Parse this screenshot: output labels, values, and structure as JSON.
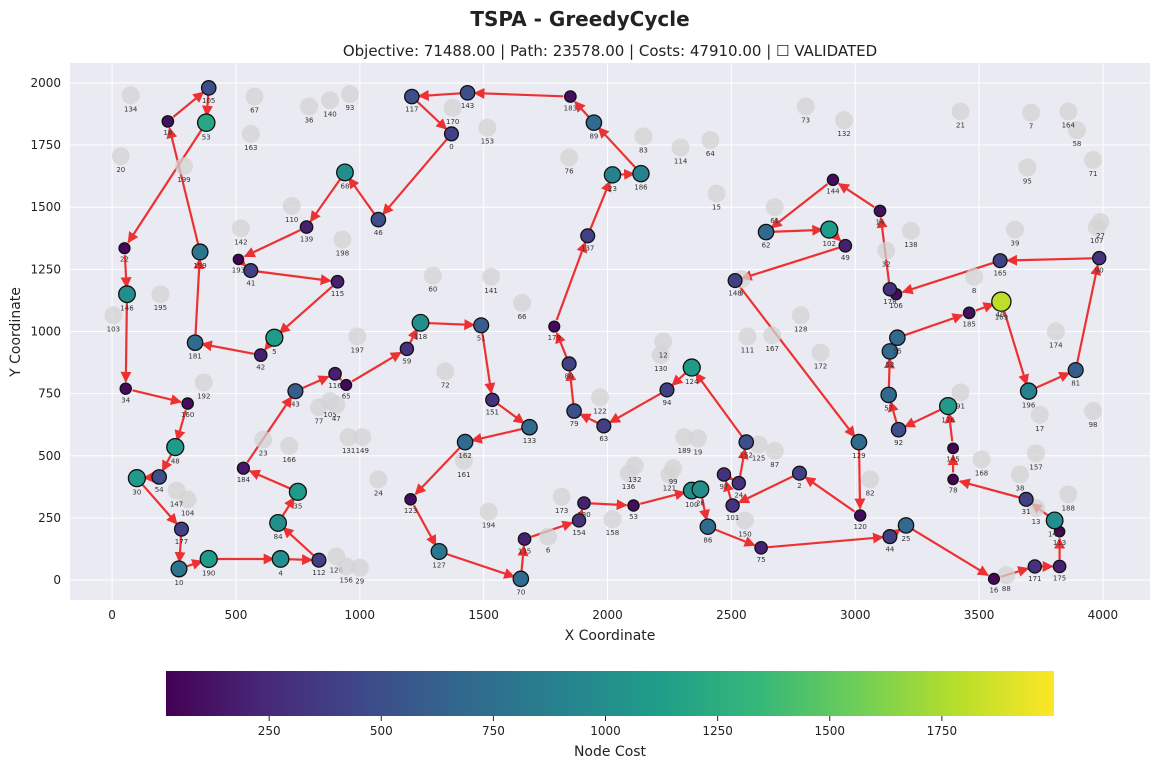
{
  "chart_data": {
    "type": "scatter",
    "title": "TSPA - GreedyCycle",
    "subtitle": "Objective: 71488.00 | Path: 23578.00 | Costs: 47910.00 | ☐ VALIDATED",
    "xlabel": "X Coordinate",
    "ylabel": "Y Coordinate",
    "xlim": [
      -170,
      4190
    ],
    "ylim": [
      -80,
      2080
    ],
    "xticks": [
      0,
      500,
      1000,
      1500,
      2000,
      2500,
      3000,
      3500,
      4000
    ],
    "yticks": [
      0,
      250,
      500,
      750,
      1000,
      1250,
      1500,
      1750,
      2000
    ],
    "grid": true,
    "colorbar": {
      "label": "Node Cost",
      "range": [
        20,
        2000
      ],
      "ticks": [
        250,
        500,
        750,
        1000,
        1250,
        1500,
        1750
      ],
      "colormap": [
        "#440154",
        "#482878",
        "#3e4989",
        "#31688e",
        "#26828e",
        "#1f9e89",
        "#35b779",
        "#6ece58",
        "#b5de2b",
        "#fde725"
      ]
    },
    "edge_color": "#ee1111",
    "unselected_color": "#d3d3d3",
    "selected_nodes": [
      {
        "id": 18,
        "x": 225,
        "y": 1845,
        "cost": 100
      },
      {
        "id": 105,
        "x": 390,
        "y": 1980,
        "cost": 500
      },
      {
        "id": 53,
        "x": 380,
        "y": 1840,
        "cost": 1200
      },
      {
        "id": 22,
        "x": 50,
        "y": 1335,
        "cost": 60
      },
      {
        "id": 146,
        "x": 60,
        "y": 1150,
        "cost": 1000
      },
      {
        "id": 34,
        "x": 55,
        "y": 770,
        "cost": 80
      },
      {
        "id": 160,
        "x": 305,
        "y": 710,
        "cost": 90
      },
      {
        "id": 48,
        "x": 255,
        "y": 535,
        "cost": 1100
      },
      {
        "id": 54,
        "x": 190,
        "y": 415,
        "cost": 500
      },
      {
        "id": 30,
        "x": 100,
        "y": 410,
        "cost": 1100
      },
      {
        "id": 177,
        "x": 280,
        "y": 205,
        "cost": 400
      },
      {
        "id": 10,
        "x": 270,
        "y": 45,
        "cost": 800
      },
      {
        "id": 190,
        "x": 390,
        "y": 85,
        "cost": 1100
      },
      {
        "id": 4,
        "x": 680,
        "y": 85,
        "cost": 1000
      },
      {
        "id": 112,
        "x": 835,
        "y": 80,
        "cost": 400
      },
      {
        "id": 84,
        "x": 670,
        "y": 230,
        "cost": 1000
      },
      {
        "id": 35,
        "x": 750,
        "y": 355,
        "cost": 1100
      },
      {
        "id": 184,
        "x": 530,
        "y": 450,
        "cost": 150
      },
      {
        "id": 43,
        "x": 740,
        "y": 760,
        "cost": 600
      },
      {
        "id": 116,
        "x": 900,
        "y": 830,
        "cost": 200
      },
      {
        "id": 65,
        "x": 945,
        "y": 785,
        "cost": 60
      },
      {
        "id": 59,
        "x": 1190,
        "y": 930,
        "cost": 300
      },
      {
        "id": 118,
        "x": 1245,
        "y": 1035,
        "cost": 1000
      },
      {
        "id": 51,
        "x": 1490,
        "y": 1025,
        "cost": 600
      },
      {
        "id": 151,
        "x": 1535,
        "y": 725,
        "cost": 300
      },
      {
        "id": 133,
        "x": 1685,
        "y": 615,
        "cost": 700
      },
      {
        "id": 162,
        "x": 1425,
        "y": 555,
        "cost": 700
      },
      {
        "id": 123,
        "x": 1205,
        "y": 325,
        "cost": 90
      },
      {
        "id": 127,
        "x": 1320,
        "y": 115,
        "cost": 800
      },
      {
        "id": 70,
        "x": 1650,
        "y": 5,
        "cost": 700
      },
      {
        "id": 135,
        "x": 1665,
        "y": 165,
        "cost": 200
      },
      {
        "id": 154,
        "x": 1885,
        "y": 240,
        "cost": 300
      },
      {
        "id": 180,
        "x": 1905,
        "y": 310,
        "cost": 200
      },
      {
        "id": 53,
        "x": 2105,
        "y": 300,
        "cost": 80
      },
      {
        "id": 100,
        "x": 2340,
        "y": 360,
        "cost": 1000
      },
      {
        "id": 26,
        "x": 2375,
        "y": 365,
        "cost": 1000
      },
      {
        "id": 86,
        "x": 2405,
        "y": 215,
        "cost": 700
      },
      {
        "id": 75,
        "x": 2620,
        "y": 130,
        "cost": 200
      },
      {
        "id": 44,
        "x": 3140,
        "y": 175,
        "cost": 400
      },
      {
        "id": 25,
        "x": 3205,
        "y": 220,
        "cost": 700
      },
      {
        "id": 16,
        "x": 3560,
        "y": 5,
        "cost": 60
      },
      {
        "id": 171,
        "x": 3725,
        "y": 55,
        "cost": 300
      },
      {
        "id": 175,
        "x": 3825,
        "y": 55,
        "cost": 200
      },
      {
        "id": 113,
        "x": 3825,
        "y": 195,
        "cost": 30
      },
      {
        "id": 140,
        "x": 3805,
        "y": 240,
        "cost": 1000
      },
      {
        "id": 31,
        "x": 3690,
        "y": 325,
        "cost": 400
      },
      {
        "id": 78,
        "x": 3395,
        "y": 405,
        "cost": 30
      },
      {
        "id": 145,
        "x": 3395,
        "y": 530,
        "cost": 40
      },
      {
        "id": 176,
        "x": 3375,
        "y": 700,
        "cost": 1100
      },
      {
        "id": 92,
        "x": 3175,
        "y": 605,
        "cost": 500
      },
      {
        "id": 57,
        "x": 3135,
        "y": 745,
        "cost": 700
      },
      {
        "id": 52,
        "x": 3140,
        "y": 920,
        "cost": 700
      },
      {
        "id": 55,
        "x": 3170,
        "y": 975,
        "cost": 700
      },
      {
        "id": 185,
        "x": 3460,
        "y": 1075,
        "cost": 100
      },
      {
        "id": 40,
        "x": 3585,
        "y": 1120,
        "cost": 600
      },
      {
        "id": 169,
        "x": 3590,
        "y": 1120,
        "cost": 1800
      },
      {
        "id": 196,
        "x": 3700,
        "y": 760,
        "cost": 900
      },
      {
        "id": 81,
        "x": 3890,
        "y": 845,
        "cost": 600
      },
      {
        "id": 90,
        "x": 3985,
        "y": 1295,
        "cost": 300
      },
      {
        "id": 165,
        "x": 3585,
        "y": 1285,
        "cost": 400
      },
      {
        "id": 106,
        "x": 3165,
        "y": 1150,
        "cost": 80
      },
      {
        "id": 178,
        "x": 3140,
        "y": 1170,
        "cost": 300
      },
      {
        "id": 14,
        "x": 3100,
        "y": 1485,
        "cost": 100
      },
      {
        "id": 144,
        "x": 2910,
        "y": 1610,
        "cost": 80
      },
      {
        "id": 62,
        "x": 2640,
        "y": 1400,
        "cost": 700
      },
      {
        "id": 102,
        "x": 2895,
        "y": 1410,
        "cost": 1100
      },
      {
        "id": 49,
        "x": 2960,
        "y": 1345,
        "cost": 200
      },
      {
        "id": 148,
        "x": 2515,
        "y": 1205,
        "cost": 400
      },
      {
        "id": 129,
        "x": 3015,
        "y": 555,
        "cost": 700
      },
      {
        "id": 120,
        "x": 3020,
        "y": 260,
        "cost": 80
      },
      {
        "id": 2,
        "x": 2775,
        "y": 430,
        "cost": 400
      },
      {
        "id": 101,
        "x": 2505,
        "y": 300,
        "cost": 300
      },
      {
        "id": 97,
        "x": 2470,
        "y": 425,
        "cost": 300
      },
      {
        "id": 24,
        "x": 2530,
        "y": 390,
        "cost": 300
      },
      {
        "id": 152,
        "x": 2560,
        "y": 555,
        "cost": 500
      },
      {
        "id": 124,
        "x": 2340,
        "y": 855,
        "cost": 1100
      },
      {
        "id": 94,
        "x": 2240,
        "y": 765,
        "cost": 400
      },
      {
        "id": 63,
        "x": 1985,
        "y": 620,
        "cost": 400
      },
      {
        "id": 79,
        "x": 1865,
        "y": 680,
        "cost": 500
      },
      {
        "id": 80,
        "x": 1845,
        "y": 870,
        "cost": 400
      },
      {
        "id": 179,
        "x": 1785,
        "y": 1020,
        "cost": 60
      },
      {
        "id": 137,
        "x": 1920,
        "y": 1385,
        "cost": 400
      },
      {
        "id": 23,
        "x": 2020,
        "y": 1630,
        "cost": 900
      },
      {
        "id": 186,
        "x": 2135,
        "y": 1635,
        "cost": 900
      },
      {
        "id": 89,
        "x": 1945,
        "y": 1840,
        "cost": 700
      },
      {
        "id": 183,
        "x": 1850,
        "y": 1945,
        "cost": 100
      },
      {
        "id": 143,
        "x": 1435,
        "y": 1960,
        "cost": 500
      },
      {
        "id": 117,
        "x": 1210,
        "y": 1945,
        "cost": 500
      },
      {
        "id": 0,
        "x": 1370,
        "y": 1795,
        "cost": 400
      },
      {
        "id": 46,
        "x": 1075,
        "y": 1450,
        "cost": 500
      },
      {
        "id": 68,
        "x": 940,
        "y": 1640,
        "cost": 1000
      },
      {
        "id": 139,
        "x": 785,
        "y": 1420,
        "cost": 200
      },
      {
        "id": 193,
        "x": 510,
        "y": 1290,
        "cost": 30
      },
      {
        "id": 41,
        "x": 560,
        "y": 1245,
        "cost": 400
      },
      {
        "id": 115,
        "x": 910,
        "y": 1200,
        "cost": 200
      },
      {
        "id": 5,
        "x": 655,
        "y": 975,
        "cost": 1100
      },
      {
        "id": 42,
        "x": 600,
        "y": 905,
        "cost": 200
      },
      {
        "id": 181,
        "x": 335,
        "y": 955,
        "cost": 700
      },
      {
        "id": 159,
        "x": 355,
        "y": 1320,
        "cost": 800
      }
    ],
    "path_order": [
      18,
      105,
      53,
      159,
      181,
      42,
      5,
      115,
      41,
      193,
      139,
      68,
      46,
      0,
      117,
      143,
      183,
      89,
      186,
      23,
      137,
      179,
      80,
      79,
      63,
      94,
      124,
      152,
      24,
      97,
      101,
      2,
      120,
      129,
      57,
      52,
      55,
      185,
      40,
      169,
      196,
      81,
      90,
      165,
      106,
      178,
      14,
      144,
      62,
      148,
      102,
      49,
      92,
      176,
      145,
      78,
      31,
      140,
      113,
      175,
      171,
      16,
      25,
      44,
      75,
      86,
      100,
      26,
      53,
      180,
      154,
      135,
      70,
      127,
      123,
      162,
      133,
      151,
      51,
      118,
      59,
      65,
      116,
      43,
      184,
      35,
      84,
      112,
      4,
      190,
      10,
      177,
      54,
      30,
      48,
      160,
      34,
      146,
      22
    ],
    "other_nodes": [
      {
        "id": 134,
        "x": 75,
        "y": 1950
      },
      {
        "id": 67,
        "x": 575,
        "y": 1945
      },
      {
        "id": 36,
        "x": 795,
        "y": 1905
      },
      {
        "id": 140,
        "x": 880,
        "y": 1930
      },
      {
        "id": 93,
        "x": 960,
        "y": 1955
      },
      {
        "id": 170,
        "x": 1375,
        "y": 1900
      },
      {
        "id": 153,
        "x": 1515,
        "y": 1820
      },
      {
        "id": 163,
        "x": 560,
        "y": 1795
      },
      {
        "id": 20,
        "x": 35,
        "y": 1705
      },
      {
        "id": 199,
        "x": 290,
        "y": 1665
      },
      {
        "id": 110,
        "x": 725,
        "y": 1505
      },
      {
        "id": 142,
        "x": 520,
        "y": 1415
      },
      {
        "id": 198,
        "x": 930,
        "y": 1370
      },
      {
        "id": 60,
        "x": 1295,
        "y": 1225
      },
      {
        "id": 141,
        "x": 1530,
        "y": 1220
      },
      {
        "id": 66,
        "x": 1655,
        "y": 1115
      },
      {
        "id": 195,
        "x": 195,
        "y": 1150
      },
      {
        "id": 103,
        "x": 5,
        "y": 1065
      },
      {
        "id": 197,
        "x": 990,
        "y": 980
      },
      {
        "id": 192,
        "x": 370,
        "y": 795
      },
      {
        "id": 72,
        "x": 1345,
        "y": 840
      },
      {
        "id": 77,
        "x": 835,
        "y": 695
      },
      {
        "id": 105,
        "x": 880,
        "y": 720
      },
      {
        "id": 47,
        "x": 905,
        "y": 705
      },
      {
        "id": 23,
        "x": 610,
        "y": 565
      },
      {
        "id": 166,
        "x": 715,
        "y": 540
      },
      {
        "id": 131,
        "x": 955,
        "y": 575
      },
      {
        "id": 149,
        "x": 1010,
        "y": 575
      },
      {
        "id": 104,
        "x": 305,
        "y": 325
      },
      {
        "id": 147,
        "x": 260,
        "y": 360
      },
      {
        "id": 24,
        "x": 1075,
        "y": 405
      },
      {
        "id": 161,
        "x": 1420,
        "y": 480
      },
      {
        "id": 194,
        "x": 1520,
        "y": 275
      },
      {
        "id": 173,
        "x": 1815,
        "y": 335
      },
      {
        "id": 6,
        "x": 1760,
        "y": 175
      },
      {
        "id": 126,
        "x": 905,
        "y": 95
      },
      {
        "id": 156,
        "x": 945,
        "y": 55
      },
      {
        "id": 29,
        "x": 1000,
        "y": 50
      },
      {
        "id": 158,
        "x": 2020,
        "y": 245
      },
      {
        "id": 150,
        "x": 2555,
        "y": 240
      },
      {
        "id": 121,
        "x": 2250,
        "y": 425
      },
      {
        "id": 99,
        "x": 2265,
        "y": 450
      },
      {
        "id": 136,
        "x": 2085,
        "y": 430
      },
      {
        "id": 132,
        "x": 2110,
        "y": 460
      },
      {
        "id": 189,
        "x": 2310,
        "y": 575
      },
      {
        "id": 19,
        "x": 2365,
        "y": 570
      },
      {
        "id": 125,
        "x": 2610,
        "y": 545
      },
      {
        "id": 87,
        "x": 2675,
        "y": 520
      },
      {
        "id": 122,
        "x": 1970,
        "y": 735
      },
      {
        "id": 130,
        "x": 2215,
        "y": 905
      },
      {
        "id": 12,
        "x": 2225,
        "y": 960
      },
      {
        "id": 111,
        "x": 2565,
        "y": 980
      },
      {
        "id": 167,
        "x": 2665,
        "y": 985
      },
      {
        "id": 128,
        "x": 2780,
        "y": 1065
      },
      {
        "id": 172,
        "x": 2860,
        "y": 915
      },
      {
        "id": 82,
        "x": 3060,
        "y": 405
      },
      {
        "id": 168,
        "x": 3510,
        "y": 485
      },
      {
        "id": 157,
        "x": 3730,
        "y": 510
      },
      {
        "id": 38,
        "x": 3665,
        "y": 425
      },
      {
        "id": 188,
        "x": 3860,
        "y": 345
      },
      {
        "id": 13,
        "x": 3730,
        "y": 290
      },
      {
        "id": 88,
        "x": 3610,
        "y": 20
      },
      {
        "id": 17,
        "x": 3745,
        "y": 665
      },
      {
        "id": 91,
        "x": 3425,
        "y": 755
      },
      {
        "id": 98,
        "x": 3960,
        "y": 680
      },
      {
        "id": 174,
        "x": 3810,
        "y": 1000
      },
      {
        "id": 8,
        "x": 3480,
        "y": 1220
      },
      {
        "id": 39,
        "x": 3645,
        "y": 1410
      },
      {
        "id": 138,
        "x": 3225,
        "y": 1405
      },
      {
        "id": 32,
        "x": 3125,
        "y": 1325
      },
      {
        "id": 107,
        "x": 3975,
        "y": 1420
      },
      {
        "id": 27,
        "x": 3990,
        "y": 1440
      },
      {
        "id": 71,
        "x": 3960,
        "y": 1690
      },
      {
        "id": 95,
        "x": 3695,
        "y": 1660
      },
      {
        "id": 58,
        "x": 3895,
        "y": 1810
      },
      {
        "id": 164,
        "x": 3860,
        "y": 1885
      },
      {
        "id": 7,
        "x": 3710,
        "y": 1880
      },
      {
        "id": 21,
        "x": 3425,
        "y": 1885
      },
      {
        "id": 73,
        "x": 2800,
        "y": 1905
      },
      {
        "id": 132,
        "x": 2955,
        "y": 1850
      },
      {
        "id": 83,
        "x": 2145,
        "y": 1785
      },
      {
        "id": 114,
        "x": 2295,
        "y": 1740
      },
      {
        "id": 64,
        "x": 2415,
        "y": 1770
      },
      {
        "id": 76,
        "x": 1845,
        "y": 1700
      },
      {
        "id": 15,
        "x": 2440,
        "y": 1555
      },
      {
        "id": 61,
        "x": 2675,
        "y": 1500
      },
      {
        "id": 3,
        "x": 2540,
        "y": 1210
      }
    ]
  }
}
